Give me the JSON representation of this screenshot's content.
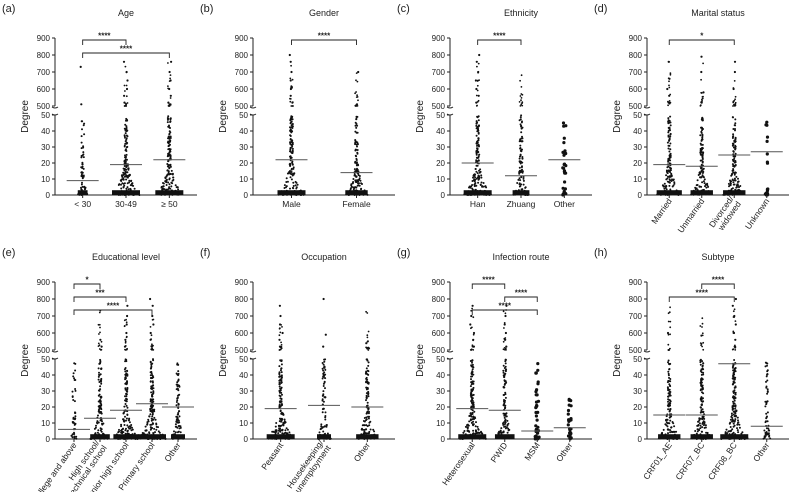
{
  "chart_data": [
    {
      "panel": "(a)",
      "title": "Age",
      "ylabel": "Degree",
      "type": "scatter",
      "ylim_lower": [
        0,
        50
      ],
      "ylim_upper": [
        500,
        900
      ],
      "categories": [
        "< 30",
        "30-49",
        "≥ 50"
      ],
      "density": [
        0.35,
        1.0,
        1.0
      ],
      "means": [
        9,
        19,
        22
      ],
      "maxLower": [
        50,
        50,
        50
      ],
      "outliers": [
        [
          510,
          730
        ],
        [
          520,
          560,
          600,
          650,
          700,
          760
        ],
        [
          520,
          560,
          600,
          650,
          700,
          760
        ]
      ],
      "tiltLabels": false,
      "sig": [
        {
          "from": 0,
          "to": 1,
          "label": "****"
        },
        {
          "from": 0,
          "to": 2,
          "label": "****"
        }
      ]
    },
    {
      "panel": "(b)",
      "title": "Gender",
      "ylabel": "Degree",
      "type": "scatter",
      "ylim_lower": [
        0,
        50
      ],
      "ylim_upper": [
        500,
        900
      ],
      "categories": [
        "Male",
        "Female"
      ],
      "density": [
        1.0,
        0.8
      ],
      "means": [
        22,
        14
      ],
      "maxLower": [
        50,
        50
      ],
      "outliers": [
        [
          520,
          560,
          600,
          650,
          700,
          760,
          800
        ],
        [
          510,
          700
        ]
      ],
      "tiltLabels": false,
      "sig": [
        {
          "from": 0,
          "to": 1,
          "label": "****"
        }
      ]
    },
    {
      "panel": "(c)",
      "title": "Ethnicity",
      "ylabel": "Degree",
      "type": "scatter",
      "ylim_lower": [
        0,
        50
      ],
      "ylim_upper": [
        500,
        900
      ],
      "categories": [
        "Han",
        "Zhuang",
        "Other"
      ],
      "density": [
        1.0,
        0.6,
        0.12
      ],
      "means": [
        20,
        12,
        22
      ],
      "maxLower": [
        50,
        50,
        48
      ],
      "outliers": [
        [
          520,
          560,
          600,
          650,
          700,
          760,
          800
        ],
        [],
        []
      ],
      "tiltLabels": false,
      "sig": [
        {
          "from": 0,
          "to": 1,
          "label": "****"
        }
      ]
    },
    {
      "panel": "(d)",
      "title": "Marital status",
      "ylabel": "Degree",
      "type": "scatter",
      "ylim_lower": [
        0,
        50
      ],
      "ylim_upper": [
        500,
        900
      ],
      "categories": [
        "Married",
        "Unmarried",
        "Divorced/\nwidowed",
        "Unknown"
      ],
      "density": [
        0.9,
        0.8,
        0.8,
        0.05
      ],
      "means": [
        19,
        18,
        25,
        27
      ],
      "maxLower": [
        50,
        50,
        50,
        46
      ],
      "outliers": [
        [
          520,
          560,
          600,
          660,
          760
        ],
        [
          520,
          580,
          700,
          790
        ],
        [
          600,
          700,
          760
        ],
        []
      ],
      "tiltLabels": true,
      "sig": [
        {
          "from": 0,
          "to": 2,
          "label": "*"
        }
      ]
    },
    {
      "panel": "(e)",
      "title": "Educational level",
      "ylabel": "Degree",
      "type": "scatter",
      "ylim_lower": [
        0,
        50
      ],
      "ylim_upper": [
        500,
        900
      ],
      "categories": [
        "College and above",
        "High school/\ntechnical school",
        "Junior high school",
        "Primary school",
        "Other"
      ],
      "density": [
        0.22,
        0.7,
        0.9,
        1.0,
        0.5
      ],
      "means": [
        6,
        13,
        18,
        22,
        20
      ],
      "maxLower": [
        48,
        50,
        50,
        50,
        48
      ],
      "outliers": [
        [],
        [
          520,
          560
        ],
        [
          520,
          560,
          600,
          650,
          700,
          760
        ],
        [
          520,
          560,
          600,
          650,
          700,
          760,
          800
        ],
        []
      ],
      "tiltLabels": true,
      "sig": [
        {
          "from": 0,
          "to": 1,
          "label": "*"
        },
        {
          "from": 0,
          "to": 2,
          "label": "***"
        },
        {
          "from": 0,
          "to": 3,
          "label": "****"
        }
      ]
    },
    {
      "panel": "(f)",
      "title": "Occupation",
      "ylabel": "Degree",
      "type": "scatter",
      "ylim_lower": [
        0,
        50
      ],
      "ylim_upper": [
        500,
        900
      ],
      "categories": [
        "Peasant",
        "Housekeeping/\nunemployment",
        "Other"
      ],
      "density": [
        1.0,
        0.5,
        0.8
      ],
      "means": [
        19,
        21,
        20
      ],
      "maxLower": [
        50,
        50,
        50
      ],
      "outliers": [
        [
          520,
          560,
          600,
          650,
          700,
          760
        ],
        [
          520,
          590,
          800
        ],
        [
          510,
          540
        ]
      ],
      "tiltLabels": true,
      "sig": []
    },
    {
      "panel": "(g)",
      "title": "Infection route",
      "ylabel": "Degree",
      "type": "scatter",
      "ylim_lower": [
        0,
        50
      ],
      "ylim_upper": [
        500,
        900
      ],
      "categories": [
        "Heterosexual",
        "PWID",
        "MSM",
        "Other"
      ],
      "density": [
        1.0,
        0.7,
        0.18,
        0.1
      ],
      "means": [
        19,
        18,
        5,
        7
      ],
      "maxLower": [
        50,
        50,
        48,
        28
      ],
      "outliers": [
        [
          520,
          560,
          600,
          650,
          700,
          760
        ],
        [
          520,
          560,
          600,
          650,
          700,
          760
        ],
        [],
        []
      ],
      "tiltLabels": true,
      "sig": [
        {
          "from": 0,
          "to": 1,
          "label": "****"
        },
        {
          "from": 1,
          "to": 2,
          "label": "****"
        },
        {
          "from": 0,
          "to": 2,
          "label": "****"
        }
      ]
    },
    {
      "panel": "(h)",
      "title": "Subtype",
      "ylabel": "Degree",
      "type": "scatter",
      "ylim_lower": [
        0,
        50
      ],
      "ylim_upper": [
        500,
        900
      ],
      "categories": [
        "CRF01_AE",
        "CRF07_BC",
        "CRF08_BC",
        "Other"
      ],
      "density": [
        0.8,
        0.8,
        1.0,
        0.3
      ],
      "means": [
        15,
        15,
        47,
        8
      ],
      "maxLower": [
        50,
        50,
        50,
        50
      ],
      "outliers": [
        [
          600
        ],
        [],
        [
          520,
          560,
          600,
          650,
          700,
          760,
          800
        ],
        []
      ],
      "tiltLabels": true,
      "sig": [
        {
          "from": 1,
          "to": 2,
          "label": "****"
        },
        {
          "from": 0,
          "to": 2,
          "label": "****"
        }
      ]
    }
  ]
}
